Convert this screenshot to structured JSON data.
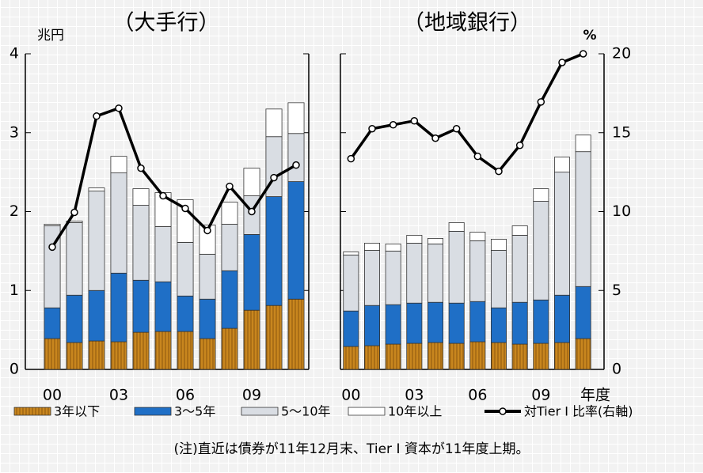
{
  "chart_data": [
    {
      "type": "bar",
      "title": "（大手行）",
      "y_label": "兆円",
      "categories": [
        "00",
        null,
        null,
        "03",
        null,
        null,
        "06",
        null,
        null,
        "09",
        null,
        null
      ],
      "ylim": [
        0,
        4
      ],
      "yticks": [
        0,
        1,
        2,
        3,
        4
      ],
      "y2lim": [
        0,
        20
      ],
      "series": [
        {
          "name": "3年以下",
          "color": "#c8861e",
          "values": [
            0.39,
            0.34,
            0.36,
            0.35,
            0.47,
            0.48,
            0.48,
            0.39,
            0.52,
            0.75,
            0.81,
            0.89
          ]
        },
        {
          "name": "3～5年",
          "color": "#1f6fc6",
          "values": [
            0.39,
            0.6,
            0.64,
            0.87,
            0.66,
            0.63,
            0.45,
            0.5,
            0.73,
            0.96,
            1.38,
            1.49
          ]
        },
        {
          "name": "5～10年",
          "color": "#d9dde3",
          "values": [
            1.04,
            0.92,
            1.26,
            1.27,
            0.95,
            0.7,
            0.68,
            0.57,
            0.59,
            0.49,
            0.76,
            0.61
          ]
        },
        {
          "name": "10年以上",
          "color": "#ffffff",
          "values": [
            0.02,
            0.02,
            0.04,
            0.21,
            0.21,
            0.43,
            0.54,
            0.37,
            0.28,
            0.35,
            0.35,
            0.39
          ]
        },
        {
          "name": "対Tier I 比率(右軸)",
          "color": "#000000",
          "axis": "y2",
          "values": [
            7.75,
            9.95,
            16.05,
            16.55,
            12.75,
            11.0,
            10.2,
            8.8,
            11.6,
            10.0,
            12.15,
            12.95
          ]
        }
      ]
    },
    {
      "type": "bar",
      "title": "（地域銀行）",
      "y2_label": "%",
      "x_label": "年度",
      "categories": [
        "00",
        null,
        null,
        "03",
        null,
        null,
        "06",
        null,
        null,
        "09",
        null,
        null
      ],
      "ylim": [
        0,
        4
      ],
      "y2lim": [
        0,
        20
      ],
      "y2ticks": [
        0,
        5,
        10,
        15,
        20
      ],
      "series": [
        {
          "color": "#c8861e",
          "values": [
            0.29,
            0.3,
            0.32,
            0.33,
            0.34,
            0.33,
            0.35,
            0.34,
            0.32,
            0.33,
            0.34,
            0.39
          ]
        },
        {
          "color": "#1f6fc6",
          "values": [
            0.45,
            0.51,
            0.5,
            0.51,
            0.51,
            0.51,
            0.51,
            0.44,
            0.53,
            0.55,
            0.6,
            0.66
          ]
        },
        {
          "color": "#d9dde3",
          "values": [
            0.71,
            0.7,
            0.68,
            0.76,
            0.74,
            0.91,
            0.77,
            0.73,
            0.85,
            1.25,
            1.56,
            1.71
          ]
        },
        {
          "color": "#ffffff",
          "values": [
            0.04,
            0.09,
            0.09,
            0.1,
            0.07,
            0.11,
            0.11,
            0.14,
            0.12,
            0.16,
            0.19,
            0.21
          ]
        },
        {
          "color": "#000000",
          "axis": "y2",
          "values": [
            13.35,
            15.25,
            15.5,
            15.75,
            14.65,
            15.25,
            13.5,
            12.55,
            14.2,
            16.95,
            19.45,
            20.0
          ]
        }
      ]
    }
  ],
  "note": "(注)直近は債券が11年12月末、Tier I 資本が11年度上期。"
}
